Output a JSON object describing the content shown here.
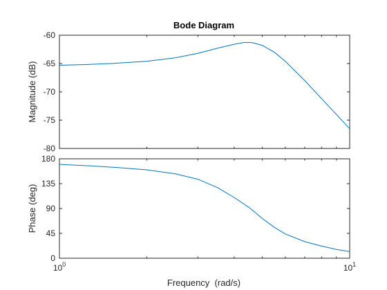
{
  "chart_data": {
    "type": "line",
    "title": "Bode Diagram",
    "xlabel": "Frequency  (rad/s)",
    "x_scale": "log",
    "xlim": [
      1,
      10
    ],
    "x_ticks": [
      {
        "value": 1,
        "base": "10",
        "exp": "0"
      },
      {
        "value": 10,
        "base": "10",
        "exp": "1"
      }
    ],
    "line_color": "#0072bd",
    "panels": [
      {
        "name": "magnitude",
        "ylabel": "Magnitude (dB)",
        "ylim": [
          -80,
          -60
        ],
        "yticks": [
          "-60",
          "-65",
          "-70",
          "-75",
          "-80"
        ],
        "series": {
          "x": [
            1.0,
            1.2,
            1.5,
            2.0,
            2.5,
            3.0,
            3.5,
            4.0,
            4.3,
            4.6,
            5.0,
            5.5,
            6.0,
            7.0,
            8.0,
            9.0,
            10.0
          ],
          "y": [
            -65.3,
            -65.2,
            -65.0,
            -64.6,
            -64.0,
            -63.2,
            -62.3,
            -61.6,
            -61.3,
            -61.3,
            -61.8,
            -63.0,
            -64.6,
            -68.0,
            -71.2,
            -74.0,
            -76.5
          ]
        }
      },
      {
        "name": "phase",
        "ylabel": "Phase (deg)",
        "ylim": [
          0,
          180
        ],
        "yticks": [
          "180",
          "135",
          "90",
          "45",
          "0"
        ],
        "series": {
          "x": [
            1.0,
            1.3,
            1.6,
            2.0,
            2.5,
            3.0,
            3.5,
            4.0,
            4.5,
            5.0,
            5.5,
            6.0,
            7.0,
            8.0,
            9.0,
            10.0
          ],
          "y": [
            170,
            167,
            164,
            160,
            153,
            143,
            128,
            110,
            92,
            72,
            56,
            44,
            30,
            22,
            16,
            12
          ]
        }
      }
    ]
  }
}
